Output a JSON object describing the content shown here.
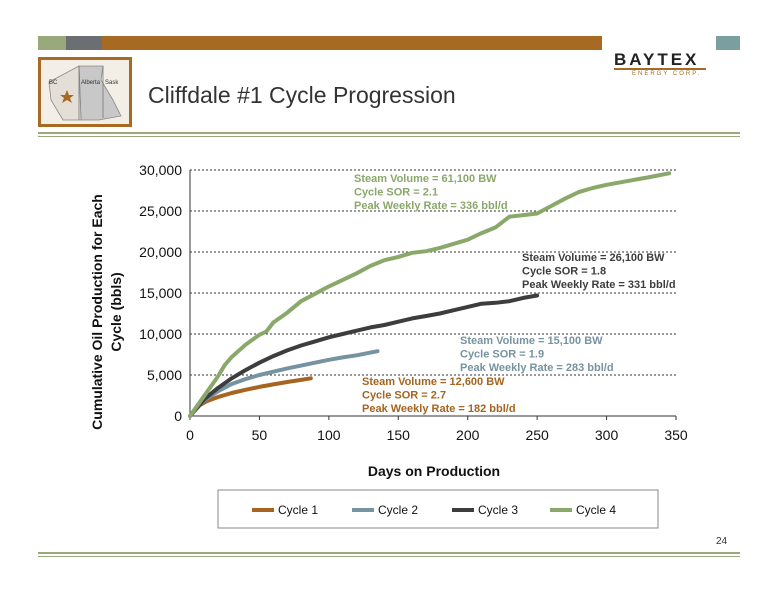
{
  "slide": {
    "title": "Cliffdale #1 Cycle Progression",
    "page_number": "24",
    "logo": {
      "name": "BAYTEX",
      "tagline": "ENERGY CORP."
    },
    "map_labels": {
      "bc": "BC",
      "alberta": "Alberta",
      "sask": "Sask"
    }
  },
  "colors": {
    "header_green": "#9aa97c",
    "header_gray": "#6b6e72",
    "header_brown": "#a76a22",
    "header_teal": "#7a9fa0",
    "accent_green": "#8faa6e"
  },
  "chart_data": {
    "type": "line",
    "title": "",
    "xlabel": "Days on Production",
    "ylabel": "Cumulative Oil Production for Each Cycle (bbls)",
    "ylabel_lines": [
      "Cumulative Oil Production for Each",
      "Cycle (bbls)"
    ],
    "xlim": [
      0,
      350
    ],
    "ylim": [
      0,
      30000
    ],
    "x_ticks": [
      0,
      50,
      100,
      150,
      200,
      250,
      300,
      350
    ],
    "y_ticks": [
      0,
      5000,
      10000,
      15000,
      20000,
      25000,
      30000
    ],
    "x_tick_labels": [
      "0",
      "50",
      "100",
      "150",
      "200",
      "250",
      "300",
      "350"
    ],
    "y_tick_labels": [
      "0",
      "5,000",
      "10,000",
      "15,000",
      "20,000",
      "25,000",
      "30,000"
    ],
    "grid": "horizontal dashed",
    "legend_position": "bottom",
    "series": [
      {
        "name": "Cycle 1",
        "color": "#a5641f",
        "x": [
          0,
          3,
          7,
          12,
          20,
          30,
          40,
          50,
          60,
          70,
          80,
          87
        ],
        "y": [
          0,
          600,
          1300,
          1800,
          2300,
          2800,
          3200,
          3550,
          3850,
          4150,
          4400,
          4600
        ],
        "annotation": [
          "Steam Volume = 12,600 BW",
          "Cycle SOR = 2.7",
          "Peak Weekly Rate = 182 bbl/d"
        ]
      },
      {
        "name": "Cycle 2",
        "color": "#7693a0",
        "x": [
          0,
          5,
          10,
          20,
          30,
          40,
          50,
          60,
          70,
          80,
          90,
          100,
          110,
          120,
          135
        ],
        "y": [
          0,
          1000,
          1900,
          3000,
          3900,
          4500,
          5000,
          5400,
          5800,
          6150,
          6500,
          6850,
          7150,
          7400,
          7900
        ],
        "annotation": [
          "Steam Volume = 15,100 BW",
          "Cycle SOR = 1.9",
          "Peak Weekly Rate = 283 bbl/d"
        ]
      },
      {
        "name": "Cycle 3",
        "color": "#3d3d3f",
        "x": [
          0,
          5,
          10,
          20,
          30,
          40,
          50,
          60,
          70,
          80,
          90,
          100,
          110,
          120,
          130,
          140,
          150,
          160,
          170,
          180,
          190,
          200,
          210,
          220,
          230,
          240,
          250
        ],
        "y": [
          0,
          1000,
          2000,
          3400,
          4600,
          5600,
          6500,
          7300,
          8000,
          8600,
          9100,
          9600,
          10000,
          10400,
          10800,
          11100,
          11500,
          11900,
          12200,
          12500,
          12900,
          13300,
          13700,
          13800,
          14000,
          14400,
          14700
        ],
        "annotation": [
          "Steam Volume = 26,100 BW",
          "Cycle SOR = 1.8",
          "Peak Weekly Rate = 331 bbl/d"
        ]
      },
      {
        "name": "Cycle 4",
        "color": "#8aa86a",
        "x": [
          0,
          5,
          10,
          20,
          25,
          30,
          40,
          50,
          55,
          60,
          70,
          80,
          90,
          100,
          110,
          120,
          130,
          140,
          150,
          160,
          170,
          180,
          190,
          200,
          210,
          220,
          230,
          240,
          250,
          260,
          270,
          280,
          290,
          300,
          310,
          320,
          330,
          345
        ],
        "y": [
          0,
          1200,
          2400,
          4800,
          6200,
          7200,
          8700,
          9900,
          10300,
          11400,
          12600,
          14000,
          14900,
          15800,
          16600,
          17400,
          18300,
          19000,
          19400,
          19900,
          20100,
          20500,
          21000,
          21500,
          22300,
          23000,
          24300,
          24500,
          24700,
          25600,
          26500,
          27300,
          27800,
          28200,
          28500,
          28800,
          29100,
          29600
        ],
        "annotation": [
          "Steam Volume = 61,100 BW",
          "Cycle SOR = 2.1",
          "Peak Weekly Rate = 336 bbl/d"
        ]
      }
    ]
  }
}
